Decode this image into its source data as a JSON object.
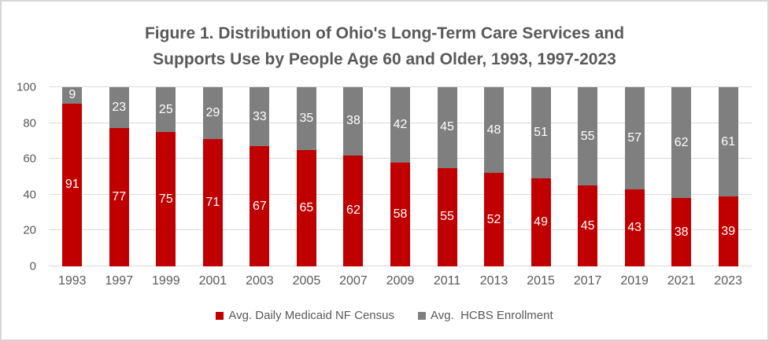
{
  "figure": {
    "title_line1": "Figure 1. Distribution of Ohio's Long-Term Care Services and",
    "title_line2": "Supports Use by People Age 60 and Older, 1993, 1997-2023"
  },
  "chart_data": {
    "type": "bar",
    "stacked": true,
    "title": "Figure 1. Distribution of Ohio's Long-Term Care Services and Supports Use by People Age 60 and Older, 1993, 1997-2023",
    "categories": [
      "1993",
      "1997",
      "1999",
      "2001",
      "2003",
      "2005",
      "2007",
      "2009",
      "2011",
      "2013",
      "2015",
      "2017",
      "2019",
      "2021",
      "2023"
    ],
    "series": [
      {
        "name": "Avg. Daily Medicaid NF Census",
        "color": "#C00000",
        "values": [
          91,
          77,
          75,
          71,
          67,
          65,
          62,
          58,
          55,
          52,
          49,
          45,
          43,
          38,
          39
        ]
      },
      {
        "name": "Avg.  HCBS Enrollment",
        "color": "#7F7F7F",
        "values": [
          9,
          23,
          25,
          29,
          33,
          35,
          38,
          42,
          45,
          48,
          51,
          55,
          57,
          62,
          61
        ]
      }
    ],
    "xlabel": "",
    "ylabel": "",
    "ylim": [
      0,
      100
    ],
    "yticks": [
      0,
      20,
      40,
      60,
      80,
      100
    ],
    "grid": true,
    "data_labels": true,
    "data_label_color": "#FFFFFF",
    "legend_position": "bottom"
  },
  "colors": {
    "title_text": "#595959",
    "axis_text": "#595959",
    "gridline": "#D9D9D9",
    "border": "#D6D6D6",
    "background": "#FFFFFF",
    "nf_census_red": "#C00000",
    "hcbs_gray": "#7F7F7F"
  }
}
